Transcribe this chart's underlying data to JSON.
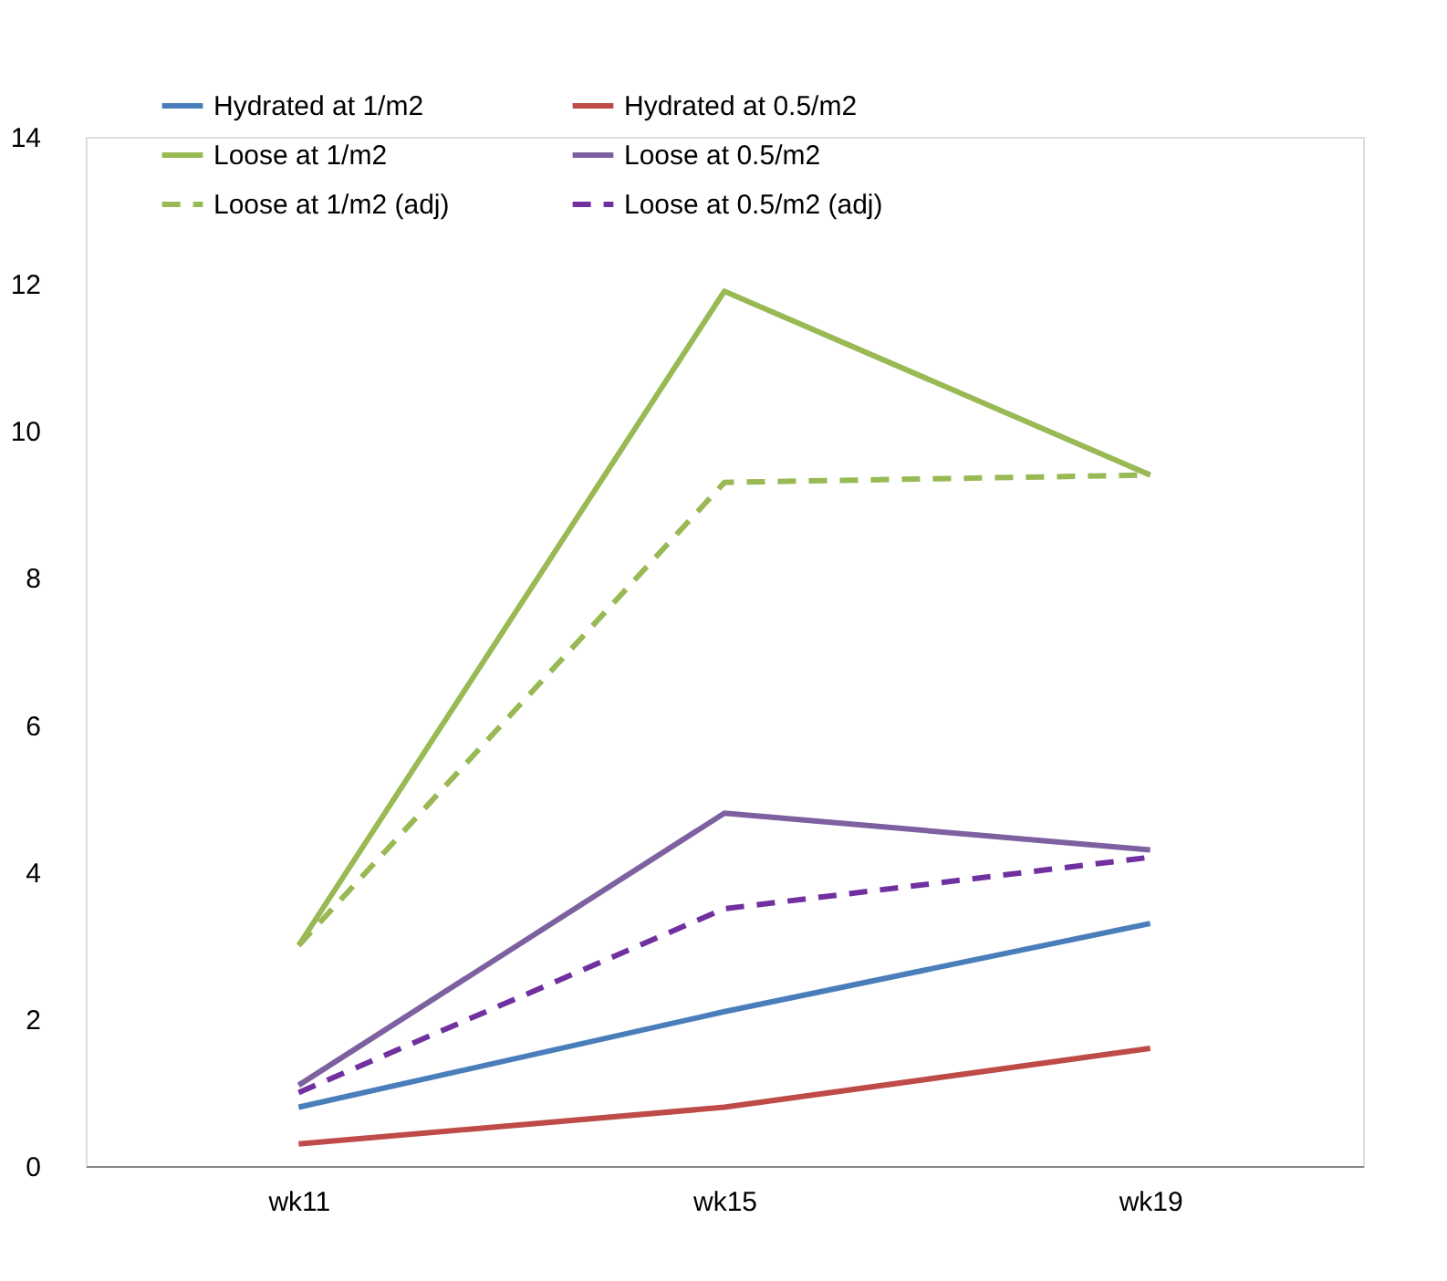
{
  "chart_data": {
    "type": "line",
    "categories": [
      "wk11",
      "wk15",
      "wk19"
    ],
    "ylim": [
      0,
      14
    ],
    "yticks": [
      0,
      2,
      4,
      6,
      8,
      10,
      12,
      14
    ],
    "grid": false,
    "legend": "top",
    "marker": "none",
    "series": [
      {
        "name": "Hydrated at 1/m2",
        "color": "#4a7ebb",
        "line_style": "solid",
        "values": [
          0.8,
          2.1,
          3.3
        ]
      },
      {
        "name": "Hydrated at 0.5/m2",
        "color": "#be4b48",
        "line_style": "solid",
        "values": [
          0.3,
          0.8,
          1.6
        ]
      },
      {
        "name": "Loose at 1/m2",
        "color": "#98b954",
        "line_style": "solid",
        "values": [
          3.0,
          11.9,
          9.4
        ]
      },
      {
        "name": "Loose at 0.5/m2",
        "color": "#7d60a0",
        "line_style": "solid",
        "values": [
          1.1,
          4.8,
          4.3
        ]
      },
      {
        "name": "Loose at 1/m2 (adj)",
        "color": "#98b954",
        "line_style": "dashed",
        "values": [
          3.0,
          9.3,
          9.4
        ]
      },
      {
        "name": "Loose at 0.5/m2 (adj)",
        "color": "#7030a0",
        "line_style": "dashed",
        "values": [
          1.0,
          3.5,
          4.2
        ]
      }
    ]
  }
}
